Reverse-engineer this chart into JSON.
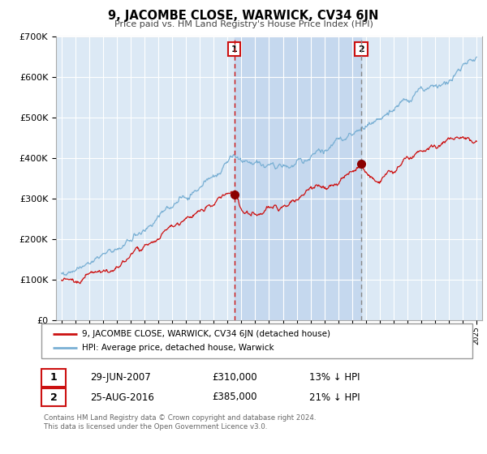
{
  "title": "9, JACOMBE CLOSE, WARWICK, CV34 6JN",
  "subtitle": "Price paid vs. HM Land Registry's House Price Index (HPI)",
  "ylim": [
    0,
    700000
  ],
  "yticks": [
    0,
    100000,
    200000,
    300000,
    400000,
    500000,
    600000,
    700000
  ],
  "ytick_labels": [
    "£0",
    "£100K",
    "£200K",
    "£300K",
    "£400K",
    "£500K",
    "£600K",
    "£700K"
  ],
  "hpi_color": "#7ab0d4",
  "price_color": "#cc1111",
  "marker_color": "#8b0000",
  "bg_color": "#dce9f5",
  "shade_color": "#c5d8ee",
  "grid_color": "#ffffff",
  "event1_x": 2007.49,
  "event1_y": 310000,
  "event1_date_str": "29-JUN-2007",
  "event1_price_str": "£310,000",
  "event1_pct_str": "13% ↓ HPI",
  "event2_x": 2016.65,
  "event2_y": 385000,
  "event2_date_str": "25-AUG-2016",
  "event2_price_str": "£385,000",
  "event2_pct_str": "21% ↓ HPI",
  "legend_line1": "9, JACOMBE CLOSE, WARWICK, CV34 6JN (detached house)",
  "legend_line2": "HPI: Average price, detached house, Warwick",
  "footer": "Contains HM Land Registry data © Crown copyright and database right 2024.\nThis data is licensed under the Open Government Licence v3.0.",
  "xmin": 1994.6,
  "xmax": 2025.4
}
